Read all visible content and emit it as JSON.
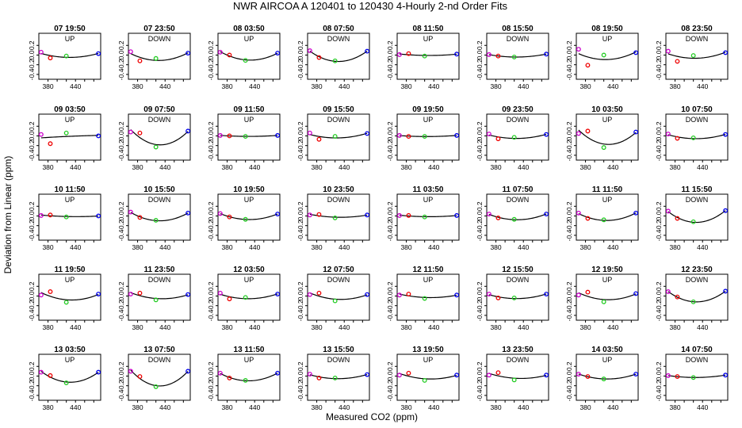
{
  "chart_data": {
    "type": "scatter",
    "title": "NWR   AIRCOA A   120401 to 120430   4-Hourly 2-nd Order Fits",
    "xlabel": "Measured CO2 (ppm)",
    "ylabel": "Deviation from Linear (ppm)",
    "xlim": [
      360,
      495
    ],
    "ylim": [
      -0.5,
      0.45
    ],
    "xticks": [
      380,
      440
    ],
    "xtick_labels": [
      "380",
      "440"
    ],
    "yticks": [
      0.2,
      0.0,
      -0.2,
      -0.4
    ],
    "ytick_labels": [
      "0.2",
      "0.0",
      "-0.2",
      "-0.4"
    ],
    "point_colors": [
      "#cc00cc",
      "#ee0000",
      "#22cc22",
      "#0000ee"
    ],
    "curve_color": "#000000",
    "panels": [
      {
        "label": "07 19:50",
        "mode": "UP",
        "points": [
          [
            365,
            0.06
          ],
          [
            385,
            -0.06
          ],
          [
            420,
            -0.02
          ],
          [
            490,
            0.03
          ]
        ]
      },
      {
        "label": "07 23:50",
        "mode": "DOWN",
        "points": [
          [
            365,
            0.07
          ],
          [
            385,
            -0.12
          ],
          [
            420,
            -0.07
          ],
          [
            490,
            0.04
          ]
        ]
      },
      {
        "label": "08 03:50",
        "mode": "UP",
        "points": [
          [
            365,
            0.06
          ],
          [
            385,
            0.0
          ],
          [
            420,
            -0.11
          ],
          [
            490,
            0.04
          ]
        ]
      },
      {
        "label": "08 07:50",
        "mode": "DOWN",
        "points": [
          [
            365,
            0.09
          ],
          [
            385,
            -0.05
          ],
          [
            420,
            -0.12
          ],
          [
            490,
            0.08
          ]
        ]
      },
      {
        "label": "08 11:50",
        "mode": "UP",
        "points": [
          [
            365,
            0.01
          ],
          [
            385,
            0.03
          ],
          [
            420,
            -0.02
          ],
          [
            490,
            0.02
          ]
        ]
      },
      {
        "label": "08 15:50",
        "mode": "DOWN",
        "points": [
          [
            365,
            0.01
          ],
          [
            385,
            -0.02
          ],
          [
            420,
            -0.04
          ],
          [
            490,
            0.02
          ]
        ]
      },
      {
        "label": "08 19:50",
        "mode": "UP",
        "points": [
          [
            365,
            0.12
          ],
          [
            385,
            -0.21
          ],
          [
            420,
            0.0
          ],
          [
            490,
            0.05
          ]
        ]
      },
      {
        "label": "08 23:50",
        "mode": "DOWN",
        "points": [
          [
            365,
            0.08
          ],
          [
            385,
            -0.13
          ],
          [
            420,
            -0.01
          ],
          [
            490,
            0.05
          ]
        ]
      },
      {
        "label": "09 03:50",
        "mode": "UP",
        "points": [
          [
            365,
            0.03
          ],
          [
            385,
            -0.16
          ],
          [
            420,
            0.06
          ],
          [
            490,
            0.0
          ]
        ]
      },
      {
        "label": "09 07:50",
        "mode": "DOWN",
        "points": [
          [
            365,
            0.08
          ],
          [
            385,
            0.06
          ],
          [
            420,
            -0.23
          ],
          [
            490,
            0.1
          ]
        ]
      },
      {
        "label": "09 11:50",
        "mode": "UP",
        "points": [
          [
            365,
            0.01
          ],
          [
            385,
            0.0
          ],
          [
            420,
            -0.01
          ],
          [
            490,
            0.01
          ]
        ]
      },
      {
        "label": "09 15:50",
        "mode": "DOWN",
        "points": [
          [
            365,
            0.06
          ],
          [
            385,
            -0.07
          ],
          [
            420,
            -0.01
          ],
          [
            490,
            0.05
          ]
        ]
      },
      {
        "label": "09 19:50",
        "mode": "UP",
        "points": [
          [
            365,
            0.01
          ],
          [
            385,
            -0.01
          ],
          [
            420,
            -0.01
          ],
          [
            490,
            0.01
          ]
        ]
      },
      {
        "label": "09 23:50",
        "mode": "DOWN",
        "points": [
          [
            365,
            0.04
          ],
          [
            385,
            -0.06
          ],
          [
            420,
            -0.03
          ],
          [
            490,
            0.03
          ]
        ]
      },
      {
        "label": "10 03:50",
        "mode": "UP",
        "points": [
          [
            365,
            0.05
          ],
          [
            385,
            0.1
          ],
          [
            420,
            -0.24
          ],
          [
            490,
            0.08
          ]
        ]
      },
      {
        "label": "10 07:50",
        "mode": "DOWN",
        "points": [
          [
            365,
            0.04
          ],
          [
            385,
            -0.05
          ],
          [
            420,
            -0.04
          ],
          [
            490,
            0.03
          ]
        ]
      },
      {
        "label": "10 11:50",
        "mode": "UP",
        "points": [
          [
            365,
            0.01
          ],
          [
            385,
            0.02
          ],
          [
            420,
            -0.02
          ],
          [
            490,
            0.0
          ]
        ]
      },
      {
        "label": "10 15:50",
        "mode": "DOWN",
        "points": [
          [
            365,
            0.08
          ],
          [
            385,
            -0.03
          ],
          [
            420,
            -0.09
          ],
          [
            490,
            0.06
          ]
        ]
      },
      {
        "label": "10 19:50",
        "mode": "UP",
        "points": [
          [
            365,
            0.05
          ],
          [
            385,
            -0.02
          ],
          [
            420,
            -0.07
          ],
          [
            490,
            0.04
          ]
        ]
      },
      {
        "label": "10 23:50",
        "mode": "DOWN",
        "points": [
          [
            365,
            0.02
          ],
          [
            385,
            0.03
          ],
          [
            420,
            -0.04
          ],
          [
            490,
            0.02
          ]
        ]
      },
      {
        "label": "11 03:50",
        "mode": "UP",
        "points": [
          [
            365,
            0.01
          ],
          [
            385,
            0.01
          ],
          [
            420,
            -0.02
          ],
          [
            490,
            0.01
          ]
        ]
      },
      {
        "label": "11 07:50",
        "mode": "DOWN",
        "points": [
          [
            365,
            0.04
          ],
          [
            385,
            -0.04
          ],
          [
            420,
            -0.07
          ],
          [
            490,
            0.04
          ]
        ]
      },
      {
        "label": "11 11:50",
        "mode": "UP",
        "points": [
          [
            365,
            0.06
          ],
          [
            385,
            -0.05
          ],
          [
            420,
            -0.08
          ],
          [
            490,
            0.06
          ]
        ]
      },
      {
        "label": "11 15:50",
        "mode": "DOWN",
        "points": [
          [
            365,
            0.1
          ],
          [
            385,
            -0.05
          ],
          [
            420,
            -0.12
          ],
          [
            490,
            0.11
          ]
        ]
      },
      {
        "label": "11 19:50",
        "mode": "UP",
        "points": [
          [
            365,
            0.02
          ],
          [
            385,
            0.09
          ],
          [
            420,
            -0.13
          ],
          [
            490,
            0.04
          ]
        ]
      },
      {
        "label": "11 23:50",
        "mode": "DOWN",
        "points": [
          [
            365,
            0.04
          ],
          [
            385,
            0.06
          ],
          [
            420,
            -0.08
          ],
          [
            490,
            0.03
          ]
        ]
      },
      {
        "label": "12 03:50",
        "mode": "UP",
        "points": [
          [
            365,
            0.06
          ],
          [
            385,
            -0.06
          ],
          [
            420,
            -0.03
          ],
          [
            490,
            0.04
          ]
        ]
      },
      {
        "label": "12 07:50",
        "mode": "DOWN",
        "points": [
          [
            365,
            0.03
          ],
          [
            385,
            0.06
          ],
          [
            420,
            -0.1
          ],
          [
            490,
            0.03
          ]
        ]
      },
      {
        "label": "12 11:50",
        "mode": "UP",
        "points": [
          [
            365,
            0.02
          ],
          [
            385,
            0.04
          ],
          [
            420,
            -0.05
          ],
          [
            490,
            0.02
          ]
        ]
      },
      {
        "label": "12 15:50",
        "mode": "DOWN",
        "points": [
          [
            365,
            0.04
          ],
          [
            385,
            -0.04
          ],
          [
            420,
            -0.04
          ],
          [
            490,
            0.04
          ]
        ]
      },
      {
        "label": "12 19:50",
        "mode": "UP",
        "points": [
          [
            365,
            0.02
          ],
          [
            385,
            0.08
          ],
          [
            420,
            -0.12
          ],
          [
            490,
            0.05
          ]
        ]
      },
      {
        "label": "12 23:50",
        "mode": "DOWN",
        "points": [
          [
            365,
            0.09
          ],
          [
            385,
            -0.02
          ],
          [
            420,
            -0.12
          ],
          [
            490,
            0.1
          ]
        ]
      },
      {
        "label": "13 03:50",
        "mode": "UP",
        "points": [
          [
            365,
            0.08
          ],
          [
            385,
            0.01
          ],
          [
            420,
            -0.14
          ],
          [
            490,
            0.08
          ]
        ]
      },
      {
        "label": "13 07:50",
        "mode": "DOWN",
        "points": [
          [
            365,
            0.1
          ],
          [
            385,
            -0.01
          ],
          [
            420,
            -0.22
          ],
          [
            490,
            0.1
          ]
        ]
      },
      {
        "label": "13 11:50",
        "mode": "UP",
        "points": [
          [
            365,
            0.06
          ],
          [
            385,
            -0.04
          ],
          [
            420,
            -0.09
          ],
          [
            490,
            0.06
          ]
        ]
      },
      {
        "label": "13 15:50",
        "mode": "DOWN",
        "points": [
          [
            365,
            0.04
          ],
          [
            385,
            -0.04
          ],
          [
            420,
            -0.04
          ],
          [
            490,
            0.03
          ]
        ]
      },
      {
        "label": "13 19:50",
        "mode": "UP",
        "points": [
          [
            365,
            0.02
          ],
          [
            385,
            0.06
          ],
          [
            420,
            -0.09
          ],
          [
            490,
            0.02
          ]
        ]
      },
      {
        "label": "13 23:50",
        "mode": "DOWN",
        "points": [
          [
            365,
            0.02
          ],
          [
            385,
            0.07
          ],
          [
            420,
            -0.08
          ],
          [
            490,
            0.02
          ]
        ]
      },
      {
        "label": "14 03:50",
        "mode": "UP",
        "points": [
          [
            365,
            0.04
          ],
          [
            385,
            -0.01
          ],
          [
            420,
            -0.06
          ],
          [
            490,
            0.04
          ]
        ]
      },
      {
        "label": "14 07:50",
        "mode": "DOWN",
        "points": [
          [
            365,
            0.01
          ],
          [
            385,
            -0.01
          ],
          [
            420,
            -0.03
          ],
          [
            490,
            0.02
          ]
        ]
      }
    ]
  }
}
